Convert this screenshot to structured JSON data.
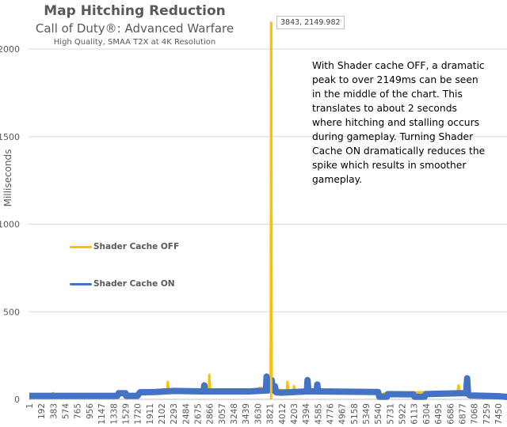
{
  "chart_data": {
    "type": "line",
    "title": "Map Hitching Reduction",
    "subtitle": "Call of Duty®: Advanced Warfare",
    "subtitle2": "High Quality, SMAA T2X  at  4K Resolution",
    "xlabel": "",
    "ylabel": "Milliseconds",
    "ylim": [
      0,
      2000
    ],
    "yticks": [
      0,
      500,
      1000,
      1500,
      2000
    ],
    "xlim": [
      1,
      7641
    ],
    "xticks": [
      1,
      192,
      383,
      574,
      765,
      956,
      1147,
      1338,
      1529,
      1720,
      1911,
      2102,
      2293,
      2484,
      2675,
      2866,
      3057,
      3248,
      3439,
      3630,
      3821,
      4012,
      4203,
      4394,
      4585,
      4776,
      4967,
      5158,
      5349,
      5540,
      5731,
      5922,
      6113,
      6304,
      6495,
      6686,
      6877,
      7068,
      7259,
      7450
    ],
    "grid": true,
    "legend_position": "left-middle",
    "series": [
      {
        "name": "Shader Cache OFF",
        "color": "#FFC000",
        "points": [
          [
            1,
            18
          ],
          [
            250,
            28
          ],
          [
            260,
            18
          ],
          [
            383,
            35
          ],
          [
            395,
            18
          ],
          [
            1400,
            20
          ],
          [
            1420,
            40
          ],
          [
            1530,
            35
          ],
          [
            1550,
            20
          ],
          [
            1720,
            25
          ],
          [
            1911,
            45
          ],
          [
            2190,
            45
          ],
          [
            2200,
            100
          ],
          [
            2215,
            45
          ],
          [
            2850,
            45
          ],
          [
            2860,
            140
          ],
          [
            2875,
            45
          ],
          [
            3600,
            50
          ],
          [
            3650,
            65
          ],
          [
            3780,
            65
          ],
          [
            3835,
            60
          ],
          [
            3843,
            2149.982
          ],
          [
            3850,
            60
          ],
          [
            4090,
            50
          ],
          [
            4100,
            100
          ],
          [
            4115,
            45
          ],
          [
            4195,
            45
          ],
          [
            4205,
            75
          ],
          [
            4220,
            40
          ],
          [
            5540,
            40
          ],
          [
            5560,
            25
          ],
          [
            5700,
            40
          ],
          [
            6800,
            40
          ],
          [
            6820,
            80
          ],
          [
            6840,
            30
          ],
          [
            7450,
            20
          ],
          [
            7641,
            10
          ]
        ]
      },
      {
        "name": "Shader Cache ON",
        "color": "#4472C4",
        "points": [
          [
            1,
            20
          ],
          [
            1400,
            20
          ],
          [
            1420,
            35
          ],
          [
            1530,
            35
          ],
          [
            1540,
            20
          ],
          [
            1720,
            20
          ],
          [
            1760,
            40
          ],
          [
            2000,
            42
          ],
          [
            2300,
            48
          ],
          [
            2770,
            45
          ],
          [
            2780,
            80
          ],
          [
            2795,
            45
          ],
          [
            3500,
            45
          ],
          [
            3760,
            50
          ],
          [
            3770,
            130
          ],
          [
            3790,
            50
          ],
          [
            3850,
            110
          ],
          [
            3870,
            50
          ],
          [
            3900,
            75
          ],
          [
            3920,
            40
          ],
          [
            4000,
            38
          ],
          [
            4410,
            45
          ],
          [
            4420,
            110
          ],
          [
            4435,
            45
          ],
          [
            4565,
            45
          ],
          [
            4575,
            85
          ],
          [
            4590,
            45
          ],
          [
            5540,
            42
          ],
          [
            5560,
            15
          ],
          [
            5680,
            15
          ],
          [
            5700,
            30
          ],
          [
            6100,
            28
          ],
          [
            6120,
            15
          ],
          [
            6280,
            15
          ],
          [
            6300,
            30
          ],
          [
            6850,
            35
          ],
          [
            6940,
            35
          ],
          [
            6955,
            120
          ],
          [
            6970,
            30
          ],
          [
            7000,
            22
          ],
          [
            7450,
            18
          ],
          [
            7641,
            12
          ]
        ]
      }
    ],
    "data_label": "3843, 2149.982"
  },
  "annotation": {
    "lines": [
      "With Shader cache OFF, a dramatic",
      "peak to over 2149ms can be seen",
      "in the middle of the chart. This",
      "translates to about 2 seconds",
      "where hitching and stalling occurs",
      "during gameplay. Turning Shader",
      "Cache ON dramatically reduces the",
      "spike which results in smoother",
      "gameplay."
    ]
  }
}
